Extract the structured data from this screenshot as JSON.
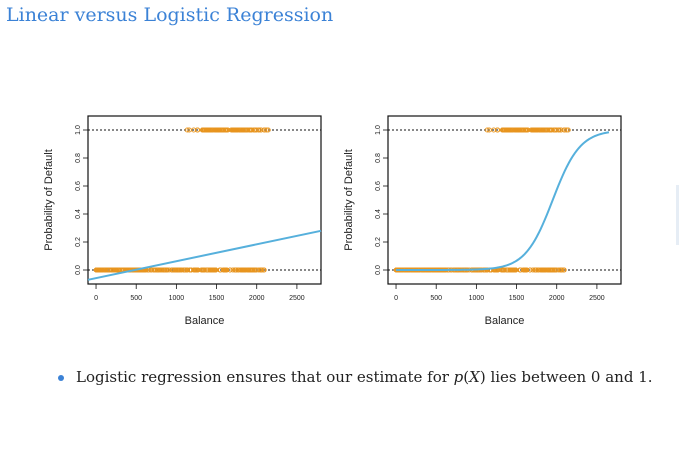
{
  "title": "Linear versus Logistic Regression",
  "bullet": {
    "before": "Logistic regression ensures that our estimate for ",
    "math_p": "p",
    "math_open": "(",
    "math_x": "X",
    "math_close": ")",
    "after": " lies between 0 and 1."
  },
  "colors": {
    "title": "#3b82d6",
    "fit_line": "#56b0dc",
    "points": "#e8951f",
    "bullet": "#3b82d6"
  },
  "chart_data": [
    {
      "type": "scatter",
      "title": "",
      "fit": "linear",
      "xlabel": "Balance",
      "ylabel": "Probability of Default",
      "xlim": [
        -100,
        2800
      ],
      "ylim": [
        -0.1,
        1.1
      ],
      "xticks": [
        0,
        500,
        1000,
        1500,
        2000,
        2500
      ],
      "xtick_labels": [
        "0",
        "500",
        "1000",
        "1500",
        "2000",
        "2500"
      ],
      "yticks": [
        0.0,
        0.2,
        0.4,
        0.6,
        0.8,
        1.0
      ],
      "ytick_labels": [
        "0.0",
        "0.2",
        "0.4",
        "0.6",
        "0.8",
        "1.0"
      ],
      "reference_lines": [
        0,
        1
      ],
      "points_y0_range": [
        0,
        2100
      ],
      "points_y1_range": [
        1000,
        2300
      ],
      "fit_line": {
        "x": [
          -100,
          2800
        ],
        "y": [
          -0.07,
          0.28
        ]
      }
    },
    {
      "type": "scatter",
      "title": "",
      "fit": "logistic",
      "xlabel": "Balance",
      "ylabel": "Probability of Default",
      "xlim": [
        -100,
        2800
      ],
      "ylim": [
        -0.1,
        1.1
      ],
      "xticks": [
        0,
        500,
        1000,
        1500,
        2000,
        2500
      ],
      "xtick_labels": [
        "0",
        "500",
        "1000",
        "1500",
        "2000",
        "2500"
      ],
      "yticks": [
        0.0,
        0.2,
        0.4,
        0.6,
        0.8,
        1.0
      ],
      "ytick_labels": [
        "0.0",
        "0.2",
        "0.4",
        "0.6",
        "0.8",
        "1.0"
      ],
      "reference_lines": [
        0,
        1
      ],
      "points_y0_range": [
        0,
        2100
      ],
      "points_y1_range": [
        1000,
        2300
      ],
      "logistic": {
        "midpoint": 1950,
        "scale": 170,
        "x_range": [
          0,
          2650
        ]
      }
    }
  ]
}
